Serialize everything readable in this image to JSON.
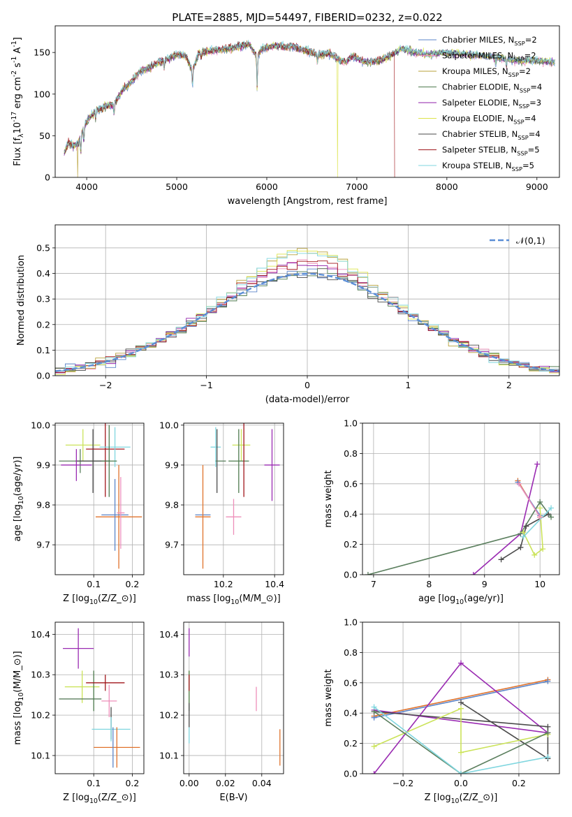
{
  "figure_title": "PLATE=2885, MJD=54497, FIBERID=0232, z=0.022",
  "colors": {
    "chabrier_miles": "#5b84c8",
    "salpeter_miles": "#ee8fba",
    "kroupa_miles": "#b8a13a",
    "chabrier_elodie": "#4e7a4e",
    "salpeter_elodie": "#8f1fa8",
    "kroupa_elodie": "#dce34a",
    "chabrier_stelib": "#4a4a4a",
    "salpeter_stelib": "#a0161b",
    "kroupa_stelib": "#7fd6df",
    "orange": "#e0722b",
    "green": "#5b7f5e",
    "purple": "#9a2bb2",
    "lime": "#cbe35a",
    "dark": "#4b4b4b",
    "normal": "#5b8ed6",
    "grid": "#b0b0b0"
  },
  "chart_data": [
    {
      "id": "spectrum",
      "type": "line",
      "title": "PLATE=2885, MJD=54497, FIBERID=0232, z=0.022",
      "xlabel": "wavelength [Angstrom, rest frame]",
      "ylabel": "Flux [f$_\\lambda$10$^{-17}$ erg cm$^{-2}$ s$^{-1}$ A$^{-1}$]",
      "xlim": [
        3650,
        9250
      ],
      "ylim": [
        0,
        182
      ],
      "xticks": [
        4000,
        5000,
        6000,
        7000,
        8000,
        9000
      ],
      "yticks": [
        0,
        50,
        100,
        150
      ],
      "grid": false,
      "legend": "top-right",
      "legend_entries": [
        "Chabrier MILES, N$_{SSP}$=2",
        "Salpeter MILES, N$_{SSP}$=2",
        "Kroupa MILES, N$_{SSP}$=2",
        "Chabrier ELODIE, N$_{SSP}$=4",
        "Salpeter ELODIE, N$_{SSP}$=3",
        "Kroupa ELODIE, N$_{SSP}$=4",
        "Chabrier STELIB, N$_{SSP}$=4",
        "Salpeter STELIB, N$_{SSP}$=5",
        "Kroupa STELIB, N$_{SSP}$=5"
      ],
      "continuum": [
        [
          3750,
          30
        ],
        [
          3800,
          42
        ],
        [
          3850,
          38
        ],
        [
          3900,
          40
        ],
        [
          3950,
          55
        ],
        [
          4000,
          68
        ],
        [
          4100,
          80
        ],
        [
          4200,
          85
        ],
        [
          4300,
          88
        ],
        [
          4400,
          105
        ],
        [
          4500,
          115
        ],
        [
          4600,
          128
        ],
        [
          4700,
          132
        ],
        [
          4800,
          138
        ],
        [
          4900,
          142
        ],
        [
          5000,
          148
        ],
        [
          5100,
          146
        ],
        [
          5175,
          128
        ],
        [
          5250,
          150
        ],
        [
          5400,
          152
        ],
        [
          5600,
          155
        ],
        [
          5800,
          160
        ],
        [
          5890,
          145
        ],
        [
          5950,
          155
        ],
        [
          6100,
          158
        ],
        [
          6300,
          157
        ],
        [
          6500,
          150
        ],
        [
          6563,
          148
        ],
        [
          6700,
          148
        ],
        [
          6870,
          138
        ],
        [
          6950,
          146
        ],
        [
          7100,
          138
        ],
        [
          7250,
          140
        ],
        [
          7400,
          148
        ],
        [
          7500,
          155
        ],
        [
          7650,
          150
        ],
        [
          7800,
          148
        ],
        [
          8000,
          150
        ],
        [
          8200,
          148
        ],
        [
          8500,
          145
        ],
        [
          8800,
          140
        ],
        [
          9000,
          140
        ],
        [
          9200,
          138
        ]
      ],
      "absorption_features": [
        [
          3934,
          -22
        ],
        [
          3969,
          -18
        ],
        [
          4101,
          -10
        ],
        [
          4304,
          -14
        ],
        [
          4861,
          -10
        ],
        [
          5175,
          -20
        ],
        [
          5270,
          -8
        ],
        [
          5893,
          -40
        ],
        [
          6563,
          -10
        ],
        [
          8542,
          -10
        ],
        [
          8662,
          -10
        ]
      ],
      "drop_lines": [
        {
          "x": 3900,
          "series": "kroupa_miles"
        },
        {
          "x": 6785,
          "series": "kroupa_elodie"
        },
        {
          "x": 7420,
          "series": "salpeter_stelib"
        }
      ]
    },
    {
      "id": "residuals",
      "type": "bar",
      "title": "",
      "xlabel": "(data-model)/error",
      "ylabel": "Normed distribution",
      "xlim": [
        -2.5,
        2.5
      ],
      "ylim": [
        0,
        0.59
      ],
      "xticks": [
        -2,
        -1,
        0,
        1,
        2
      ],
      "yticks": [
        0.0,
        0.1,
        0.2,
        0.3,
        0.4,
        0.5
      ],
      "bin_width": 0.1,
      "grid": true,
      "legend": "top-right",
      "legend_label": "$\\mathcal{N}(0,1)$",
      "normal_curve": true,
      "peak_values": [
        0.4,
        0.42,
        0.44,
        0.46,
        0.48,
        0.5,
        0.52,
        0.54,
        0.56
      ]
    },
    {
      "id": "age_vs_z",
      "type": "scatter",
      "title": "",
      "xlabel": "Z [log$_{10}$($Z/Z_\\odot$)]",
      "ylabel": "age  [log$_{10}$($age/yr$)]",
      "xlim": [
        0.0,
        0.23
      ],
      "ylim": [
        9.625,
        10.005
      ],
      "xticks": [
        0.1,
        0.2
      ],
      "yticks": [
        9.7,
        9.8,
        9.9,
        10.0
      ],
      "grid": true,
      "points": [
        {
          "x": 0.072,
          "y": 9.95,
          "xerr": 0.045,
          "yerr": 0.04,
          "c": "lime"
        },
        {
          "x": 0.065,
          "y": 9.91,
          "xerr": 0.055,
          "yerr": 0.03,
          "c": "green"
        },
        {
          "x": 0.098,
          "y": 9.91,
          "xerr": 0.045,
          "yerr": 0.08,
          "c": "dark"
        },
        {
          "x": 0.055,
          "y": 9.9,
          "xerr": 0.04,
          "yerr": 0.04,
          "c": "purple"
        },
        {
          "x": 0.13,
          "y": 9.94,
          "xerr": 0.05,
          "yerr": 0.12,
          "c": "salpeter_stelib"
        },
        {
          "x": 0.155,
          "y": 9.945,
          "xerr": 0.04,
          "yerr": 0.05,
          "c": "kroupa_stelib"
        },
        {
          "x": 0.14,
          "y": 9.91,
          "xerr": 0.02,
          "yerr": 0.09,
          "c": "chabrier_elodie"
        },
        {
          "x": 0.165,
          "y": 9.77,
          "xerr": 0.06,
          "yerr": 0.13,
          "c": "orange"
        },
        {
          "x": 0.155,
          "y": 9.775,
          "xerr": 0.035,
          "yerr": 0.09,
          "c": "chabrier_miles"
        },
        {
          "x": 0.17,
          "y": 9.78,
          "xerr": 0.01,
          "yerr": 0.09,
          "c": "salpeter_miles"
        }
      ]
    },
    {
      "id": "age_vs_mass",
      "type": "scatter",
      "title": "",
      "xlabel": "mass [log$_{10}$($M/M_\\odot$)]",
      "ylabel": "",
      "xlim": [
        10.045,
        10.435
      ],
      "ylim": [
        9.625,
        10.005
      ],
      "xticks": [
        10.0,
        10.2,
        10.4
      ],
      "yticks": [
        9.7,
        9.8,
        9.9,
        10.0
      ],
      "grid": true,
      "points": [
        {
          "x": 10.17,
          "y": 9.945,
          "xerr": 0.02,
          "yerr": 0.05,
          "c": "kroupa_stelib"
        },
        {
          "x": 10.175,
          "y": 9.91,
          "xerr": 0.0,
          "yerr": 0.08,
          "c": "dark"
        },
        {
          "x": 10.19,
          "y": 9.91,
          "xerr": 0.02,
          "yerr": 0.0,
          "c": "green"
        },
        {
          "x": 10.27,
          "y": 9.95,
          "xerr": 0.035,
          "yerr": 0.04,
          "c": "lime"
        },
        {
          "x": 10.26,
          "y": 9.91,
          "xerr": 0.04,
          "yerr": 0.08,
          "c": "chabrier_elodie"
        },
        {
          "x": 10.28,
          "y": 9.94,
          "xerr": 0.0,
          "yerr": 0.12,
          "c": "salpeter_stelib"
        },
        {
          "x": 10.39,
          "y": 9.9,
          "xerr": 0.03,
          "yerr": 0.09,
          "c": "purple"
        },
        {
          "x": 10.12,
          "y": 9.775,
          "xerr": 0.03,
          "yerr": 0.0,
          "c": "chabrier_miles"
        },
        {
          "x": 10.12,
          "y": 9.77,
          "xerr": 0.03,
          "yerr": 0.13,
          "c": "orange"
        },
        {
          "x": 10.24,
          "y": 9.77,
          "xerr": 0.03,
          "yerr": 0.045,
          "c": "salpeter_miles"
        }
      ]
    },
    {
      "id": "weight_vs_age",
      "type": "line",
      "title": "",
      "xlabel": "age  [log$_{10}$($age/yr$)]",
      "ylabel": "mass weight",
      "xlim": [
        6.8,
        10.35
      ],
      "ylim": [
        0,
        1.0
      ],
      "xticks": [
        7,
        8,
        9,
        10
      ],
      "yticks": [
        0.0,
        0.2,
        0.4,
        0.6,
        0.8,
        1.0
      ],
      "grid": true,
      "series": [
        {
          "c": "orange",
          "pts": [
            [
              9.6,
              0.62
            ],
            [
              10.0,
              0.38
            ]
          ]
        },
        {
          "c": "chabrier_miles",
          "pts": [
            [
              9.6,
              0.61
            ],
            [
              10.0,
              0.39
            ]
          ]
        },
        {
          "c": "purple",
          "pts": [
            [
              8.8,
              0.0
            ],
            [
              9.65,
              0.27
            ],
            [
              9.95,
              0.73
            ]
          ]
        },
        {
          "c": "green",
          "pts": [
            [
              6.9,
              0.0
            ],
            [
              9.65,
              0.27
            ],
            [
              10.0,
              0.48
            ],
            [
              10.2,
              0.38
            ]
          ]
        },
        {
          "c": "dark",
          "pts": [
            [
              9.3,
              0.1
            ],
            [
              9.65,
              0.18
            ],
            [
              9.75,
              0.32
            ],
            [
              10.15,
              0.4
            ]
          ]
        },
        {
          "c": "lime",
          "pts": [
            [
              9.7,
              0.28
            ],
            [
              9.9,
              0.13
            ],
            [
              10.05,
              0.17
            ],
            [
              10.0,
              0.44
            ]
          ]
        },
        {
          "c": "kroupa_stelib",
          "pts": [
            [
              9.7,
              0.25
            ],
            [
              10.2,
              0.44
            ]
          ]
        },
        {
          "c": "salpeter_miles",
          "pts": [
            [
              9.62,
              0.6
            ],
            [
              10.0,
              0.38
            ]
          ]
        }
      ]
    },
    {
      "id": "mass_vs_z",
      "type": "scatter",
      "title": "",
      "xlabel": "Z [log$_{10}$($Z/Z_\\odot$)]",
      "ylabel": "mass [log$_{10}$($M/M_\\odot$)]",
      "xlim": [
        0.0,
        0.23
      ],
      "ylim": [
        10.055,
        10.43
      ],
      "xticks": [
        0.1,
        0.2
      ],
      "yticks": [
        10.1,
        10.2,
        10.3,
        10.4
      ],
      "grid": true,
      "points": [
        {
          "x": 0.06,
          "y": 10.365,
          "xerr": 0.04,
          "yerr": 0.05,
          "c": "purple"
        },
        {
          "x": 0.07,
          "y": 10.27,
          "xerr": 0.045,
          "yerr": 0.04,
          "c": "lime"
        },
        {
          "x": 0.065,
          "y": 10.24,
          "xerr": 0.055,
          "yerr": 0.0,
          "c": "green"
        },
        {
          "x": 0.1,
          "y": 10.26,
          "xerr": 0.0,
          "yerr": 0.05,
          "c": "chabrier_elodie"
        },
        {
          "x": 0.13,
          "y": 10.28,
          "xerr": 0.05,
          "yerr": 0.02,
          "c": "salpeter_stelib"
        },
        {
          "x": 0.14,
          "y": 10.235,
          "xerr": 0.02,
          "yerr": 0.04,
          "c": "salpeter_miles"
        },
        {
          "x": 0.145,
          "y": 10.18,
          "xerr": 0.0,
          "yerr": 0.04,
          "c": "dark"
        },
        {
          "x": 0.145,
          "y": 10.165,
          "xerr": 0.05,
          "yerr": 0.03,
          "c": "kroupa_stelib"
        },
        {
          "x": 0.16,
          "y": 10.12,
          "xerr": 0.06,
          "yerr": 0.05,
          "c": "orange"
        },
        {
          "x": 0.15,
          "y": 10.12,
          "xerr": 0.0,
          "yerr": 0.05,
          "c": "chabrier_miles"
        }
      ]
    },
    {
      "id": "mass_vs_ebv",
      "type": "scatter",
      "title": "",
      "xlabel": "E(B-V)",
      "ylabel": "",
      "xlim": [
        -0.003,
        0.052
      ],
      "ylim": [
        10.055,
        10.43
      ],
      "xticks": [
        0.0,
        0.02,
        0.04
      ],
      "yticks": [
        10.1,
        10.2,
        10.3,
        10.4
      ],
      "grid": true,
      "points": [
        {
          "x": 0.0,
          "y": 10.38,
          "xerr": 0,
          "yerr": 0.035,
          "c": "purple"
        },
        {
          "x": 0.0,
          "y": 10.27,
          "xerr": 0,
          "yerr": 0.04,
          "c": "lime"
        },
        {
          "x": 0.0,
          "y": 10.26,
          "xerr": 0,
          "yerr": 0.05,
          "c": "chabrier_elodie"
        },
        {
          "x": 0.0,
          "y": 10.28,
          "xerr": 0,
          "yerr": 0.02,
          "c": "salpeter_stelib"
        },
        {
          "x": 0.0,
          "y": 10.2,
          "xerr": 0,
          "yerr": 0.03,
          "c": "dark"
        },
        {
          "x": 0.0,
          "y": 10.15,
          "xerr": 0,
          "yerr": 0.02,
          "c": "kroupa_stelib"
        },
        {
          "x": 0.037,
          "y": 10.24,
          "xerr": 0,
          "yerr": 0.03,
          "c": "salpeter_miles"
        },
        {
          "x": 0.05,
          "y": 10.12,
          "xerr": 0,
          "yerr": 0.045,
          "c": "orange"
        }
      ]
    },
    {
      "id": "weight_vs_z",
      "type": "line",
      "title": "",
      "xlabel": "Z [log$_{10}$($Z/Z_\\odot$)]",
      "ylabel": "mass weight",
      "xlim": [
        -0.34,
        0.34
      ],
      "ylim": [
        0,
        1.0
      ],
      "xticks": [
        -0.2,
        0.0,
        0.2
      ],
      "yticks": [
        0.0,
        0.2,
        0.4,
        0.6,
        0.8,
        1.0
      ],
      "grid": true,
      "series": [
        {
          "c": "orange",
          "pts": [
            [
              -0.3,
              0.38
            ],
            [
              0.3,
              0.62
            ]
          ]
        },
        {
          "c": "chabrier_miles",
          "pts": [
            [
              -0.3,
              0.37
            ],
            [
              0.3,
              0.61
            ]
          ]
        },
        {
          "c": "purple",
          "pts": [
            [
              -0.3,
              0.0
            ],
            [
              0.0,
              0.73
            ],
            [
              0.3,
              0.27
            ],
            [
              -0.3,
              0.42
            ]
          ]
        },
        {
          "c": "dark",
          "pts": [
            [
              -0.3,
              0.41
            ],
            [
              0.3,
              0.31
            ],
            [
              0.3,
              0.1
            ],
            [
              0.0,
              0.47
            ]
          ]
        },
        {
          "c": "lime",
          "pts": [
            [
              -0.3,
              0.18
            ],
            [
              0.0,
              0.43
            ],
            [
              0.0,
              0.14
            ],
            [
              0.3,
              0.26
            ]
          ]
        },
        {
          "c": "green",
          "pts": [
            [
              -0.3,
              0.41
            ],
            [
              0.0,
              0.0
            ],
            [
              0.3,
              0.27
            ]
          ]
        },
        {
          "c": "kroupa_stelib",
          "pts": [
            [
              -0.3,
              0.44
            ],
            [
              0.0,
              0.0
            ],
            [
              0.3,
              0.11
            ]
          ]
        }
      ]
    }
  ]
}
